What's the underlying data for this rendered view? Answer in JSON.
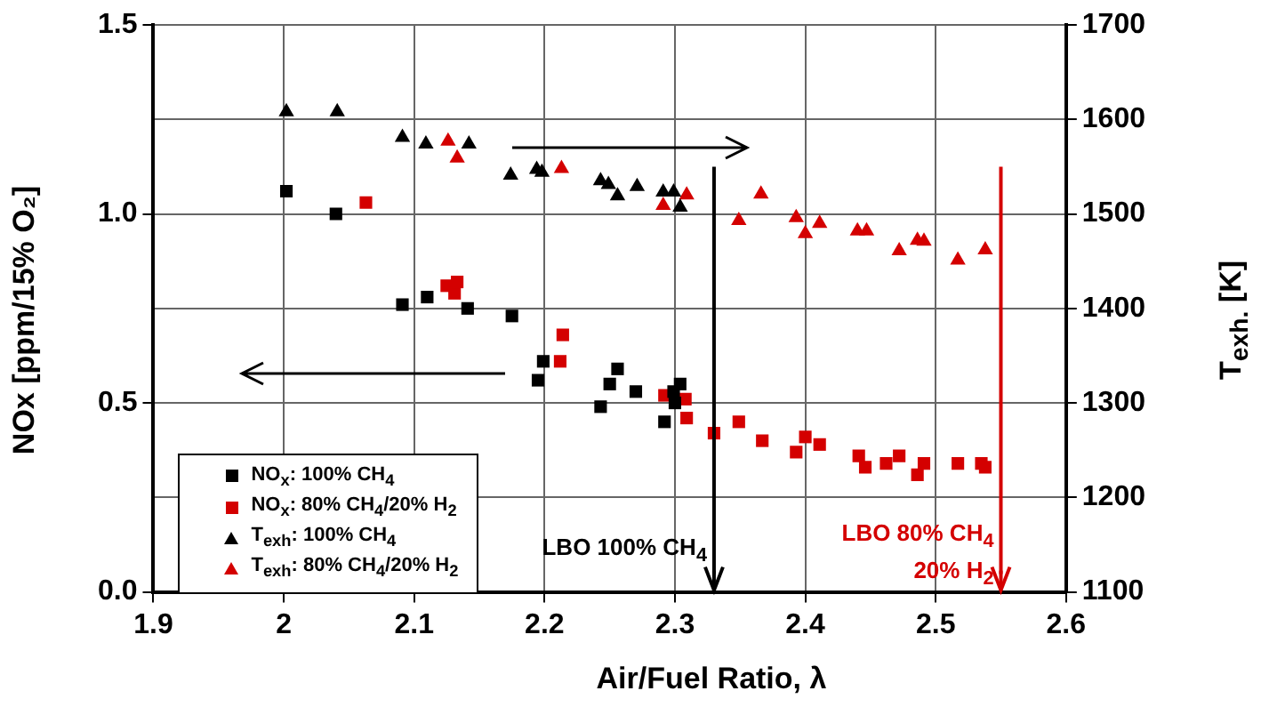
{
  "chart_data": {
    "type": "scatter",
    "xlabel": "Air/Fuel Ratio, λ",
    "ylabel": "NOx [ppm/15% O₂]",
    "y2label": "T$_{exh.}$ [K]",
    "xlim": [
      1.9,
      2.6
    ],
    "xticks": [
      1.9,
      2,
      2.1,
      2.2,
      2.3,
      2.4,
      2.5,
      2.6
    ],
    "ylim": [
      0,
      1.5
    ],
    "yticks": [
      {
        "value": 0,
        "label": "0.0"
      },
      {
        "value": 0.5,
        "label": "0.5"
      },
      {
        "value": 1,
        "label": "1.0"
      },
      {
        "value": 1.5,
        "label": "1.5"
      }
    ],
    "y2lim": [
      1100,
      1700
    ],
    "y2ticks": [
      1100,
      1200,
      1300,
      1400,
      1500,
      1600,
      1700
    ],
    "grid": true,
    "legend": "bottom left",
    "series": [
      {
        "name": "NO$_{x}$: 100% CH$_{4}$",
        "color": "#000000",
        "marker": "square",
        "x": [
          2.002,
          2.04,
          2.091,
          2.11,
          2.141,
          2.175,
          2.195,
          2.199,
          2.243,
          2.25,
          2.256,
          2.27,
          2.292,
          2.299,
          2.3,
          2.304
        ],
        "values": [
          1.06,
          1.0,
          0.76,
          0.78,
          0.75,
          0.73,
          0.56,
          0.61,
          0.49,
          0.55,
          0.59,
          0.53,
          0.45,
          0.53,
          0.5,
          0.55
        ]
      },
      {
        "name": "NO$_{x}$: 80% CH$_{4}$/20% H$_{2}$",
        "color": "#d40000",
        "marker": "square",
        "x": [
          2.063,
          2.125,
          2.131,
          2.133,
          2.212,
          2.214,
          2.292,
          2.308,
          2.309,
          2.33,
          2.349,
          2.367,
          2.393,
          2.4,
          2.411,
          2.441,
          2.446,
          2.462,
          2.472,
          2.486,
          2.491,
          2.517,
          2.535,
          2.538
        ],
        "values": [
          1.03,
          0.81,
          0.79,
          0.82,
          0.61,
          0.68,
          0.52,
          0.51,
          0.46,
          0.42,
          0.45,
          0.4,
          0.37,
          0.41,
          0.39,
          0.36,
          0.33,
          0.34,
          0.36,
          0.31,
          0.34,
          0.34,
          0.34,
          0.33
        ]
      },
      {
        "name": "T$_{exh}$: 100% CH$_{4}$",
        "color": "#000000",
        "marker": "triangle",
        "axis": "y2",
        "x": [
          2.002,
          2.041,
          2.091,
          2.109,
          2.142,
          2.174,
          2.194,
          2.198,
          2.243,
          2.249,
          2.256,
          2.271,
          2.291,
          2.299,
          2.304
        ],
        "values": [
          1608,
          1608,
          1581,
          1574,
          1574,
          1541,
          1547,
          1544,
          1535,
          1531,
          1519,
          1529,
          1523,
          1523,
          1507
        ]
      },
      {
        "name": "T$_{exh}$: 80% CH$_{4}$/20% H$_{2}$",
        "color": "#d40000",
        "marker": "triangle",
        "axis": "y2",
        "x": [
          2.126,
          2.133,
          2.213,
          2.291,
          2.309,
          2.349,
          2.366,
          2.393,
          2.4,
          2.411,
          2.44,
          2.447,
          2.472,
          2.486,
          2.491,
          2.517,
          2.538
        ],
        "values": [
          1577,
          1559,
          1548,
          1509,
          1520,
          1493,
          1521,
          1496,
          1479,
          1490,
          1482,
          1482,
          1461,
          1472,
          1471,
          1451,
          1462
        ]
      }
    ],
    "ref_lines": [
      {
        "axis": "x",
        "value": 2.33,
        "label": "LBO 100% CH$_{4}$",
        "color": "#000000"
      },
      {
        "axis": "x",
        "value": 2.55,
        "label": "LBO 80% CH$_{4}$ 20% H$_{2}$",
        "color": "#d40000"
      }
    ]
  }
}
